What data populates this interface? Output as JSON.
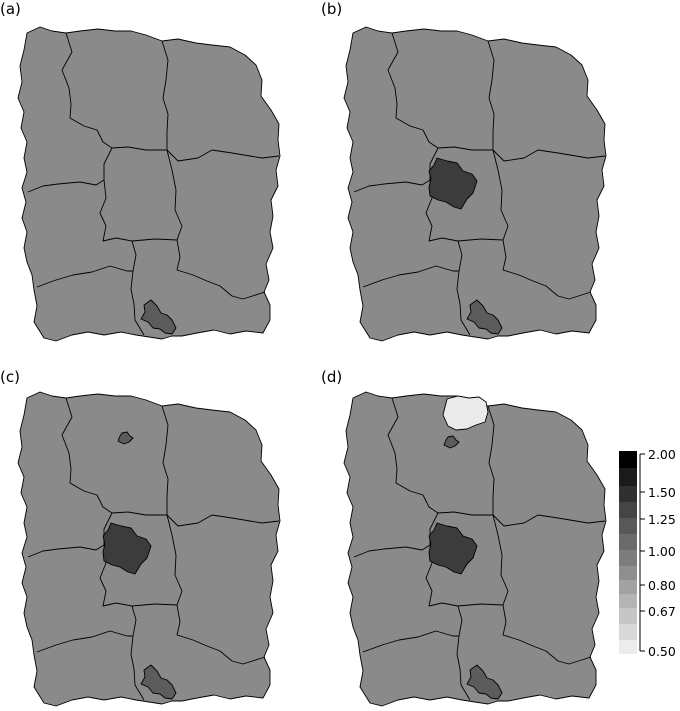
{
  "panels": [
    {
      "label": "(a)",
      "hotspots": [
        {
          "name": "south-hotspot",
          "level": 1.25
        }
      ]
    },
    {
      "label": "(b)",
      "hotspots": [
        {
          "name": "central-hotspot",
          "level": 1.5
        },
        {
          "name": "south-hotspot",
          "level": 1.25
        }
      ]
    },
    {
      "label": "(c)",
      "hotspots": [
        {
          "name": "central-hotspot",
          "level": 1.5
        },
        {
          "name": "south-hotspot",
          "level": 1.25
        },
        {
          "name": "north-small-hotspot",
          "level": 1.25
        }
      ]
    },
    {
      "label": "(d)",
      "hotspots": [
        {
          "name": "central-hotspot",
          "level": 1.5
        },
        {
          "name": "south-hotspot",
          "level": 1.25
        },
        {
          "name": "north-small-hotspot",
          "level": 1.25
        },
        {
          "name": "north-coldspot",
          "level": 0.5
        }
      ]
    }
  ],
  "background_level": 1.0,
  "legend": {
    "tick_labels": [
      "2.00",
      "1.50",
      "1.25",
      "1.00",
      "0.80",
      "0.67",
      "0.50"
    ],
    "tick_values": [
      2.0,
      1.5,
      1.25,
      1.0,
      0.8,
      0.67,
      0.5
    ],
    "scale": "log",
    "band_colors": [
      "#ececec",
      "#d8d8d8",
      "#c6c6c6",
      "#b4b4b4",
      "#a2a2a2",
      "#8f8f8f",
      "#7d7d7d",
      "#6b6b6b",
      "#585858",
      "#454545",
      "#303030",
      "#1a1a1a",
      "#000000"
    ]
  },
  "colors": {
    "base_region": "#8a8a8a",
    "hot_125": "#5c5c5c",
    "hot_150": "#3c3c3c",
    "cold_050": "#eaeaea"
  }
}
